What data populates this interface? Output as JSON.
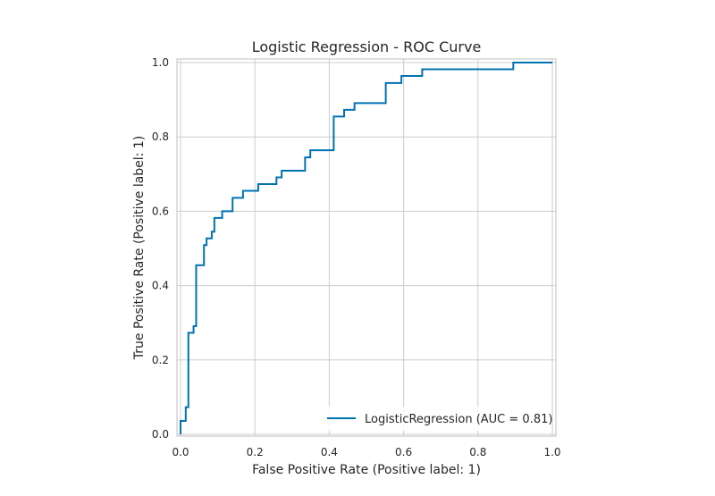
{
  "chart_data": {
    "type": "line",
    "title": "Logistic Regression - ROC Curve",
    "xlabel": "False Positive Rate (Positive label: 1)",
    "ylabel": "True Positive Rate (Positive label: 1)",
    "xlim": [
      0.0,
      1.0
    ],
    "ylim": [
      0.0,
      1.0
    ],
    "xticks": [
      "0.0",
      "0.2",
      "0.4",
      "0.6",
      "0.8",
      "1.0"
    ],
    "yticks": [
      "0.0",
      "0.2",
      "0.4",
      "0.6",
      "0.8",
      "1.0"
    ],
    "grid": true,
    "legend_position": "lower-right",
    "line_color": "#0072b2",
    "series": [
      {
        "name": "LogisticRegression (AUC = 0.81)",
        "step": true,
        "x": [
          0.0,
          0.0,
          0.0,
          0.014,
          0.014,
          0.021,
          0.021,
          0.035,
          0.035,
          0.042,
          0.042,
          0.063,
          0.063,
          0.07,
          0.07,
          0.084,
          0.084,
          0.091,
          0.091,
          0.112,
          0.112,
          0.14,
          0.14,
          0.168,
          0.168,
          0.209,
          0.209,
          0.258,
          0.258,
          0.272,
          0.272,
          0.335,
          0.335,
          0.349,
          0.349,
          0.412,
          0.412,
          0.44,
          0.44,
          0.468,
          0.468,
          0.552,
          0.552,
          0.594,
          0.594,
          0.65,
          0.65,
          0.895,
          0.895,
          1.0
        ],
        "y": [
          0.0,
          0.0,
          0.036,
          0.036,
          0.073,
          0.073,
          0.273,
          0.273,
          0.291,
          0.291,
          0.455,
          0.455,
          0.509,
          0.509,
          0.527,
          0.527,
          0.545,
          0.545,
          0.582,
          0.582,
          0.6,
          0.6,
          0.636,
          0.636,
          0.655,
          0.655,
          0.673,
          0.673,
          0.691,
          0.691,
          0.709,
          0.709,
          0.745,
          0.745,
          0.764,
          0.764,
          0.855,
          0.855,
          0.873,
          0.873,
          0.891,
          0.891,
          0.945,
          0.945,
          0.964,
          0.964,
          0.982,
          0.982,
          1.0,
          1.0
        ]
      }
    ]
  }
}
